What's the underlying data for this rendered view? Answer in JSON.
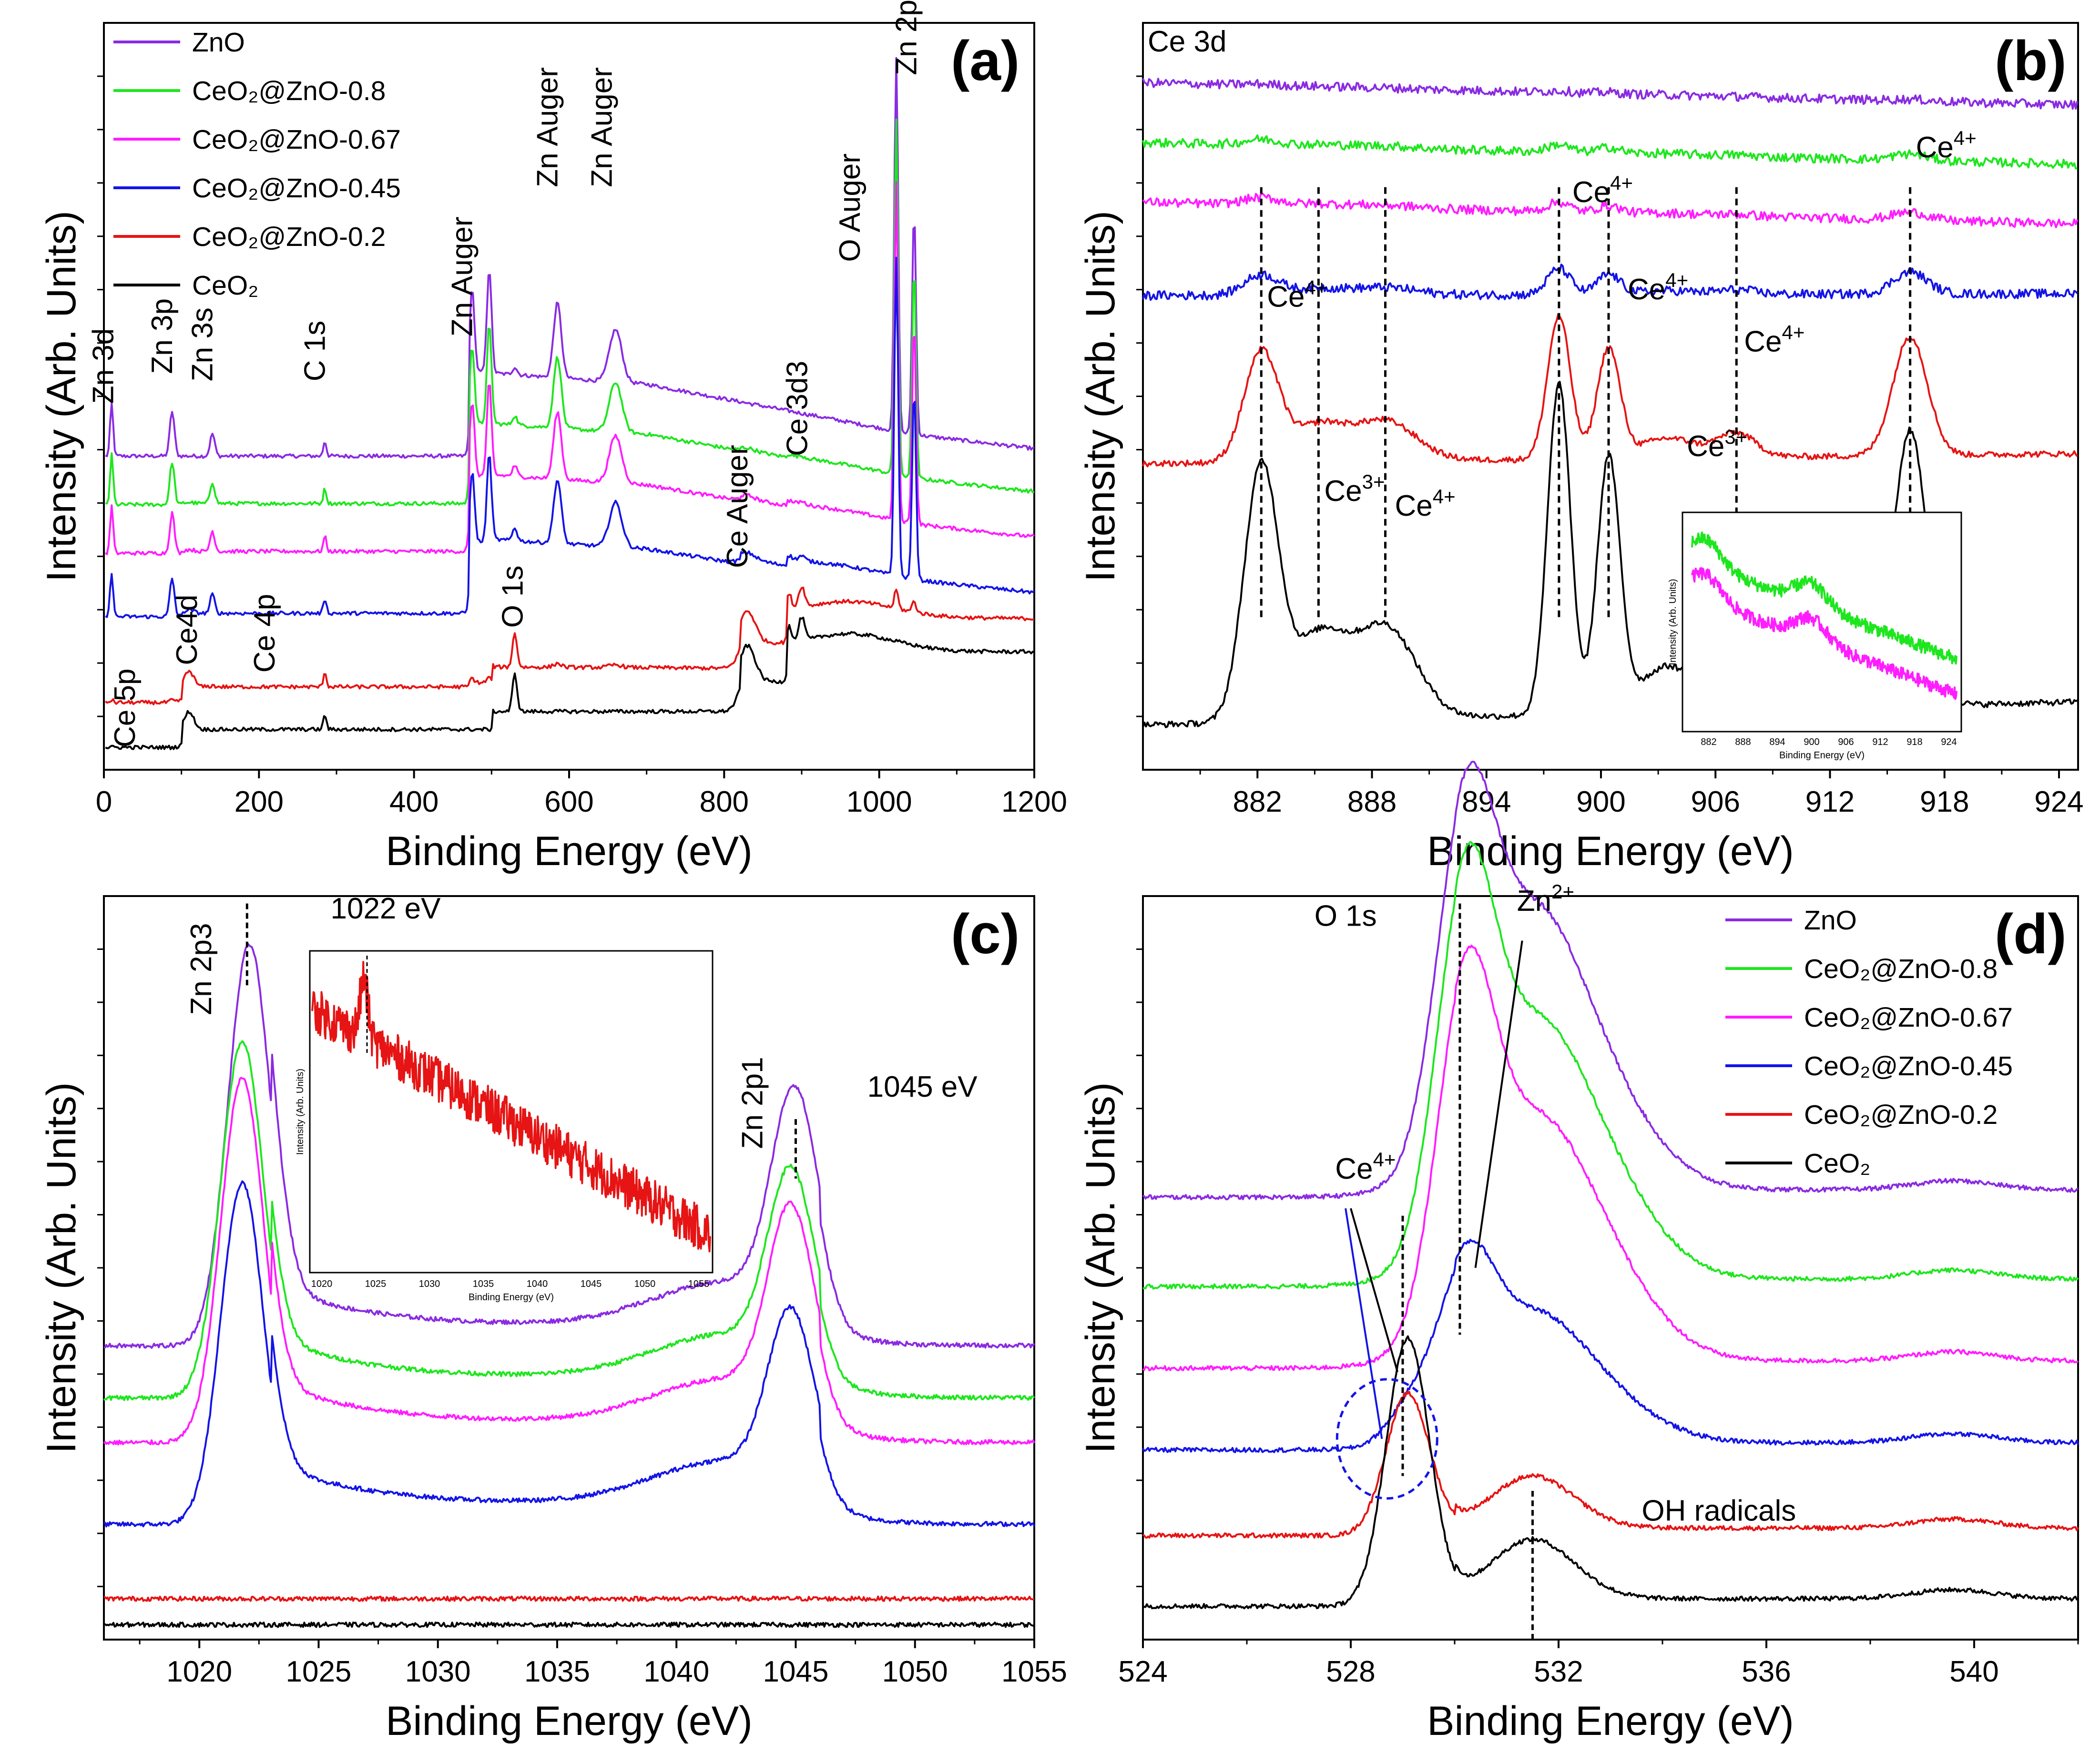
{
  "chart_data": [
    {
      "panel": "(a)",
      "type": "line",
      "title": "",
      "xlabel": "Binding Energy (eV)",
      "ylabel": "Intensity (Arb. Units)",
      "xlim": [
        0,
        1200
      ],
      "x_ticks": [
        0,
        200,
        400,
        600,
        800,
        1000,
        1200
      ],
      "x_tick_labels": [
        "0",
        "200",
        "400",
        "600",
        "800",
        "1000",
        "1200"
      ],
      "legend": {
        "placement": "top-left",
        "entries": [
          {
            "label": "ZnO",
            "color": "#8a2be2"
          },
          {
            "label": "CeO₂@ZnO-0.8",
            "color": "#1ee61e"
          },
          {
            "label": "CeO₂@ZnO-0.67",
            "color": "#ff1dff"
          },
          {
            "label": "CeO₂@ZnO-0.45",
            "color": "#1414e6"
          },
          {
            "label": "CeO₂@ZnO-0.2",
            "color": "#e61414"
          },
          {
            "label": "CeO₂",
            "color": "#000000"
          }
        ]
      },
      "series": [
        {
          "name": "ZnO",
          "color": "#8a2be2",
          "baseline": 0.42,
          "scale": 1.0,
          "ce": 0.0,
          "zn": 1.0
        },
        {
          "name": "CeO₂@ZnO-0.8",
          "color": "#1ee61e",
          "baseline": 0.355,
          "scale": 1.0,
          "ce": 0.05,
          "zn": 0.95
        },
        {
          "name": "CeO₂@ZnO-0.67",
          "color": "#ff1dff",
          "baseline": 0.29,
          "scale": 1.0,
          "ce": 0.08,
          "zn": 0.9
        },
        {
          "name": "CeO₂@ZnO-0.45",
          "color": "#1414e6",
          "baseline": 0.205,
          "scale": 1.0,
          "ce": 0.15,
          "zn": 0.85
        },
        {
          "name": "CeO₂@ZnO-0.2",
          "color": "#e61414",
          "baseline": 0.09,
          "scale": 1.0,
          "ce": 0.7,
          "zn": 0.05
        },
        {
          "name": "CeO₂",
          "color": "#000000",
          "baseline": 0.03,
          "scale": 1.0,
          "ce": 0.8,
          "zn": 0.0
        }
      ],
      "annotations": [
        {
          "text": "Zn 3d",
          "x": 12,
          "y": 0.49,
          "rotate": true
        },
        {
          "text": "Zn 3p",
          "x": 88,
          "y": 0.53,
          "rotate": true
        },
        {
          "text": "Zn 3s",
          "x": 140,
          "y": 0.52,
          "rotate": true
        },
        {
          "text": "C 1s",
          "x": 285,
          "y": 0.52,
          "rotate": true
        },
        {
          "text": "Zn Auger",
          "x": 475,
          "y": 0.58,
          "rotate": true
        },
        {
          "text": "Zn Auger",
          "x": 585,
          "y": 0.78,
          "rotate": true
        },
        {
          "text": "Zn Auger",
          "x": 655,
          "y": 0.78,
          "rotate": true
        },
        {
          "text": "O Auger",
          "x": 975,
          "y": 0.68,
          "rotate": true
        },
        {
          "text": "Zn 2p",
          "x": 1048,
          "y": 0.93,
          "rotate": true
        },
        {
          "text": "Ce 3d3",
          "x": 907,
          "y": 0.42,
          "rotate": true
        },
        {
          "text": "Ce Auger",
          "x": 830,
          "y": 0.27,
          "rotate": true
        },
        {
          "text": "O 1s",
          "x": 540,
          "y": 0.19,
          "rotate": true
        },
        {
          "text": "Ce 4p",
          "x": 220,
          "y": 0.13,
          "rotate": true
        },
        {
          "text": "Ce4d",
          "x": 120,
          "y": 0.14,
          "rotate": true
        },
        {
          "text": "Ce 5p",
          "x": 40,
          "y": 0.03,
          "rotate": true
        }
      ]
    },
    {
      "panel": "(b)",
      "type": "line",
      "title": "Ce 3d",
      "xlabel": "Binding Energy (eV)",
      "ylabel": "Intensity (Arb. Units)",
      "xlim": [
        876,
        925
      ],
      "x_ticks": [
        882,
        888,
        894,
        900,
        906,
        912,
        918,
        924
      ],
      "x_tick_labels": [
        "882",
        "888",
        "894",
        "900",
        "906",
        "912",
        "918",
        "924"
      ],
      "peak_positions_eV": [
        882.2,
        885.2,
        888.7,
        897.8,
        900.4,
        907.1,
        916.2
      ],
      "series": [
        {
          "name": "ZnO",
          "color": "#8a2be2",
          "baseline": 0.92,
          "amp": 0.005
        },
        {
          "name": "CeO₂@ZnO-0.8",
          "color": "#1ee61e",
          "baseline": 0.84,
          "amp": 0.02
        },
        {
          "name": "CeO₂@ZnO-0.67",
          "color": "#ff1dff",
          "baseline": 0.76,
          "amp": 0.025
        },
        {
          "name": "CeO₂@ZnO-0.45",
          "color": "#1414e6",
          "baseline": 0.635,
          "amp": 0.07
        },
        {
          "name": "CeO₂@ZnO-0.2",
          "color": "#e61414",
          "baseline": 0.41,
          "amp": 0.38
        },
        {
          "name": "CeO₂",
          "color": "#000000",
          "baseline": 0.06,
          "amp": 0.88
        }
      ],
      "annotations": [
        {
          "text": "Ce",
          "sup": "4+",
          "x": 882.5,
          "y": 0.62
        },
        {
          "text": "Ce",
          "sup": "3+",
          "x": 885.5,
          "y": 0.36
        },
        {
          "text": "Ce",
          "sup": "4+",
          "x": 889.2,
          "y": 0.34
        },
        {
          "text": "Ce",
          "sup": "4+",
          "x": 898.5,
          "y": 0.76
        },
        {
          "text": "Ce",
          "sup": "4+",
          "x": 901.4,
          "y": 0.63
        },
        {
          "text": "Ce",
          "sup": "4+",
          "x": 907.5,
          "y": 0.56
        },
        {
          "text": "Ce",
          "sup": "3+",
          "x": 904.5,
          "y": 0.42
        },
        {
          "text": "Ce",
          "sup": "4+",
          "x": 916.5,
          "y": 0.82
        }
      ],
      "inset": {
        "xlabel": "Binding Energy (eV)",
        "ylabel": "Intensity (Arb. Units)",
        "x_tick_labels": [
          "882",
          "888",
          "894",
          "900",
          "906",
          "912",
          "918",
          "924"
        ],
        "series": [
          "CeO₂@ZnO-0.8",
          "CeO₂@ZnO-0.67"
        ]
      }
    },
    {
      "panel": "(c)",
      "type": "line",
      "title": "",
      "xlabel": "Binding Energy (eV)",
      "ylabel": "Intensity (Arb. Units)",
      "xlim": [
        1016,
        1055
      ],
      "x_ticks": [
        1020,
        1025,
        1030,
        1035,
        1040,
        1045,
        1050,
        1055
      ],
      "x_tick_labels": [
        "1020",
        "1025",
        "1030",
        "1035",
        "1040",
        "1045",
        "1050",
        "1055"
      ],
      "peaks": {
        "Zn 2p3": 1022,
        "Zn 2p1": 1045
      },
      "series": [
        {
          "name": "ZnO",
          "color": "#8a2be2",
          "baseline": 0.395,
          "amp1": 0.54,
          "amp2": 0.28
        },
        {
          "name": "CeO₂@ZnO-0.8",
          "color": "#1ee61e",
          "baseline": 0.325,
          "amp1": 0.48,
          "amp2": 0.24
        },
        {
          "name": "CeO₂@ZnO-0.67",
          "color": "#ff1dff",
          "baseline": 0.265,
          "amp1": 0.49,
          "amp2": 0.25
        },
        {
          "name": "CeO₂@ZnO-0.45",
          "color": "#1414e6",
          "baseline": 0.155,
          "amp1": 0.46,
          "amp2": 0.22
        },
        {
          "name": "CeO₂@ZnO-0.2",
          "color": "#e61414",
          "baseline": 0.055,
          "amp1": 0.0,
          "amp2": 0.0
        },
        {
          "name": "CeO₂",
          "color": "#000000",
          "baseline": 0.02,
          "amp1": 0.0,
          "amp2": 0.0
        }
      ],
      "annotations": [
        {
          "text": "Zn 2p3",
          "x": 1020.5,
          "y": 0.84,
          "rotate": true
        },
        {
          "text": "1022 eV",
          "x": 1025.5,
          "y": 0.97
        },
        {
          "text": "Zn 2p1",
          "x": 1043.6,
          "y": 0.66,
          "rotate": true
        },
        {
          "text": "1045 eV",
          "x": 1048,
          "y": 0.73
        }
      ],
      "inset": {
        "xlabel": "Binding Energy (eV)",
        "ylabel": "Intensity (Arb. Units)",
        "x_tick_labels": [
          "1020",
          "1025",
          "1030",
          "1035",
          "1040",
          "1045",
          "1050",
          "1055"
        ],
        "series": [
          "CeO₂@ZnO-0.2"
        ]
      }
    },
    {
      "panel": "(d)",
      "type": "line",
      "title": "",
      "xlabel": "Binding Energy (eV)",
      "ylabel": "Intensity (Arb. Units)",
      "xlim": [
        524,
        542
      ],
      "x_ticks": [
        524,
        528,
        532,
        536,
        540
      ],
      "x_tick_labels": [
        "524",
        "528",
        "532",
        "536",
        "540"
      ],
      "legend": {
        "placement": "top-right",
        "entries": [
          {
            "label": "ZnO",
            "color": "#8a2be2"
          },
          {
            "label": "CeO₂@ZnO-0.8",
            "color": "#1ee61e"
          },
          {
            "label": "CeO₂@ZnO-0.67",
            "color": "#ff1dff"
          },
          {
            "label": "CeO₂@ZnO-0.45",
            "color": "#1414e6"
          },
          {
            "label": "CeO₂@ZnO-0.2",
            "color": "#e61414"
          },
          {
            "label": "CeO₂",
            "color": "#000000"
          }
        ]
      },
      "series": [
        {
          "name": "ZnO",
          "color": "#8a2be2",
          "baseline": 0.595,
          "zn": 0.42,
          "ce": 0.0,
          "oh": 0.16
        },
        {
          "name": "CeO₂@ZnO-0.8",
          "color": "#1ee61e",
          "baseline": 0.475,
          "zn": 0.44,
          "ce": 0.0,
          "oh": 0.12
        },
        {
          "name": "CeO₂@ZnO-0.67",
          "color": "#ff1dff",
          "baseline": 0.365,
          "zn": 0.42,
          "ce": 0.0,
          "oh": 0.11
        },
        {
          "name": "CeO₂@ZnO-0.45",
          "color": "#1414e6",
          "baseline": 0.255,
          "zn": 0.2,
          "ce": 0.04,
          "oh": 0.07
        },
        {
          "name": "CeO₂@ZnO-0.2",
          "color": "#e61414",
          "baseline": 0.14,
          "zn": 0.0,
          "ce": 0.19,
          "oh": 0.07
        },
        {
          "name": "CeO₂",
          "color": "#000000",
          "baseline": 0.045,
          "zn": 0.0,
          "ce": 0.36,
          "oh": 0.08
        }
      ],
      "annotations": [
        {
          "text": "O 1s",
          "x": 527.3,
          "y": 0.96
        },
        {
          "text": "Zn",
          "sup": "2+",
          "x": 531.2,
          "y": 0.98
        },
        {
          "text": "Ce",
          "sup": "4+",
          "x": 527.7,
          "y": 0.62
        },
        {
          "text": "OH radicals",
          "x": 533.6,
          "y": 0.16
        }
      ]
    }
  ]
}
